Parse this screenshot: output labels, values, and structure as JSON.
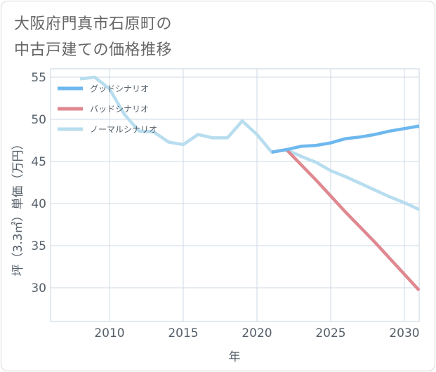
{
  "title_lines": [
    "大阪府門真市石原町の",
    "中古戸建ての価格推移"
  ],
  "chart_data": {
    "type": "line",
    "title": "大阪府門真市石原町の中古戸建ての価格推移",
    "xlabel": "年",
    "ylabel": "坪（3.3㎡）単価（万円）",
    "xlim": [
      2006,
      2031
    ],
    "ylim": [
      26,
      56
    ],
    "xticks": [
      2010,
      2015,
      2020,
      2025,
      2030
    ],
    "yticks": [
      30,
      35,
      40,
      45,
      50,
      55
    ],
    "grid": true,
    "legend_position": "top-left",
    "series": [
      {
        "name": "グッドシナリオ",
        "color": "#6db8ee",
        "x": [
          2021,
          2022,
          2023,
          2024,
          2025,
          2026,
          2027,
          2028,
          2029,
          2030,
          2031
        ],
        "values": [
          46.1,
          46.4,
          46.8,
          46.9,
          47.2,
          47.7,
          47.9,
          48.2,
          48.6,
          48.9,
          49.2
        ]
      },
      {
        "name": "バッドシナリオ",
        "color": "#df8890",
        "x": [
          2021,
          2022,
          2023,
          2024,
          2025,
          2026,
          2027,
          2028,
          2029,
          2030,
          2031
        ],
        "values": [
          46.1,
          46.4,
          44.6,
          42.8,
          40.9,
          39.0,
          37.2,
          35.4,
          33.5,
          31.6,
          29.7
        ]
      },
      {
        "name": "ノーマルシナリオ",
        "color": "#b7ddef",
        "x": [
          2008,
          2009,
          2010,
          2011,
          2012,
          2013,
          2014,
          2015,
          2016,
          2017,
          2018,
          2019,
          2020,
          2021,
          2022,
          2023,
          2024,
          2025,
          2026,
          2027,
          2028,
          2029,
          2030,
          2031
        ],
        "values": [
          54.8,
          55.0,
          53.6,
          50.6,
          48.6,
          48.5,
          47.3,
          47.0,
          48.2,
          47.8,
          47.8,
          49.8,
          48.2,
          46.1,
          46.4,
          45.6,
          44.9,
          43.9,
          43.2,
          42.4,
          41.6,
          40.8,
          40.1,
          39.3
        ]
      }
    ]
  }
}
